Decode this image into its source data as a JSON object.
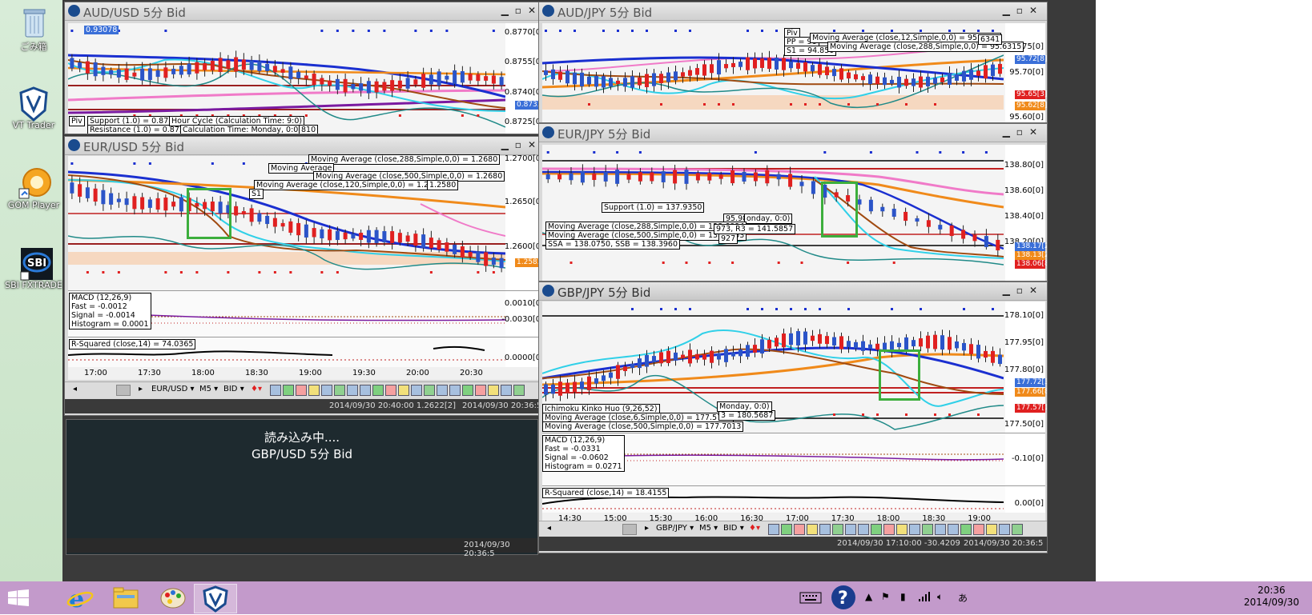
{
  "desktop": {
    "icons": [
      {
        "label": "ごみ箱",
        "icon": "recycle-bin-icon"
      },
      {
        "label": "VT Trader",
        "icon": "vt-trader-icon"
      },
      {
        "label": "GOM Player",
        "icon": "gom-player-icon"
      },
      {
        "label": "SBI FXTRADE",
        "icon": "sbi-fxtrade-icon"
      }
    ]
  },
  "windows": {
    "audusd": {
      "title": "AUD/USD 5分 Bid",
      "price_labels": [
        "0.8770[0]",
        "0.8755[0]",
        "0.8740[0]",
        "0.8725[0]"
      ],
      "current_tag": "0.8733[4]",
      "top_tag": "0.93078",
      "legends": [
        "Support (1.0) = 0.8713",
        "Resistance (1.0) = 0.8733",
        "Hour Cycle (Calculation Time: 9:0)",
        "Calculation Time: Monday, 0:0)",
        "Piv",
        "810"
      ]
    },
    "audjpy": {
      "title": "AUD/JPY 5分 Bid",
      "price_labels": [
        "95.75[0]",
        "95.70[0]",
        "95.60[0]"
      ],
      "tags": [
        "95.72[8]",
        "95.65[3]",
        "95.62[8]"
      ],
      "legends": [
        "Moving Average (close,12,Simple,0,0) = 95.6645",
        "Piv",
        "PP = 96",
        "S1 = 94.850",
        "6341",
        "Moving Average (close,288,Simple,0,0) = 95.6315"
      ]
    },
    "eurusd": {
      "title": "EUR/USD 5分 Bid",
      "price_labels": [
        "1.2700[0]",
        "1.2650[0]",
        "1.2600[0]"
      ],
      "current_tag": "1.2583[1]",
      "legends": [
        "Moving Average (close,288,Simple,0,0) = 1.2680",
        "Moving Average (close,500,Simple,0,0) = 1.2680",
        "Moving Average (close,120,Simple,0,0) = 1.2664",
        "Moving Average",
        "S1",
        "1.2580"
      ],
      "macd": {
        "title": "MACD (12,26,9)",
        "fast": "Fast = -0.0012",
        "signal": "Signal = -0.0014",
        "histogram": "Histogram = 0.0001",
        "axis": [
          "0.0010[0]",
          "-0.0030[0]"
        ]
      },
      "rsq": {
        "title": "R-Squared (close,14) = 74.0365",
        "axis": "0.0000[0]"
      },
      "times": [
        "17:00",
        "17:30",
        "18:00",
        "18:30",
        "19:00",
        "19:30",
        "20:00",
        "20:30"
      ],
      "toolbar": {
        "pair": "EUR/USD",
        "tf": "M5",
        "side": "BID"
      },
      "status": [
        "2014/09/30 20:40:00  1.2622[2]",
        "2014/09/30 20:36:5"
      ]
    },
    "eurjpy": {
      "title": "EUR/JPY 5分 Bid",
      "price_labels": [
        "138.80[0]",
        "138.60[0]",
        "138.40[0]",
        "138.20[0]"
      ],
      "tags": [
        "138.17[2]",
        "138.13[2]",
        "138.06[8]"
      ],
      "legends": [
        "Support (1.0) = 137.9350",
        "Moving Average (close,288,Simple,0,0) = 138.6094",
        "Moving Average (close,500,Simple,0,0) = 138.7553",
        "SSA = 138.0750, SSB = 138.3960",
        "973, R3 = 141.5857",
        "95.98",
        "onday, 0:0)",
        "927"
      ]
    },
    "gbpjpy": {
      "title": "GBP/JPY 5分 Bid",
      "price_labels": [
        "178.10[0]",
        "177.95[0]",
        "177.80[0]",
        "177.50[0]"
      ],
      "tags": [
        "177.72[3]",
        "177.66[8]",
        "177.57[1]"
      ],
      "legends": [
        "Ichimoku Kinko Huo (9,26,52)",
        "Moving Average (close,6,Simple,0,0) = 177.5705",
        "Moving Average (close,500,Simple,0,0) = 177.7013",
        "3 = 180.5687",
        "Monday, 0:0)"
      ],
      "macd": {
        "title": "MACD (12,26,9)",
        "fast": "Fast = -0.0331",
        "signal": "Signal = -0.0602",
        "histogram": "Histogram = 0.0271",
        "axis": "-0.10[0]"
      },
      "rsq": {
        "title": "R-Squared (close,14) = 18.4155",
        "axis": "0.00[0]"
      },
      "times": [
        "14:30",
        "15:00",
        "15:30",
        "16:00",
        "16:30",
        "17:00",
        "17:30",
        "18:00",
        "18:30",
        "19:00"
      ],
      "toolbar": {
        "pair": "GBP/JPY",
        "tf": "M5",
        "side": "BID"
      },
      "status": [
        "2014/09/30 17:10:00  -30.4209",
        "2014/09/30 20:36:5"
      ]
    },
    "gbpusd": {
      "loading_text": "読み込み中....",
      "loading_pair": "GBP/USD 5分 Bid",
      "status": "2014/09/30 20:36:5"
    }
  },
  "taskbar": {
    "time": "20:36",
    "date": "2014/09/30",
    "ime": "あ"
  },
  "colors": {
    "bull": "#2b54c8",
    "bear": "#e02020",
    "ma_blue": "#1a2fd0",
    "ma_orange": "#f08a1a",
    "ma_cyan": "#30d0e8",
    "ma_brown": "#a04a10",
    "teal": "#208a88",
    "pink": "#f07ac8",
    "highlight": "#3cae3c"
  }
}
